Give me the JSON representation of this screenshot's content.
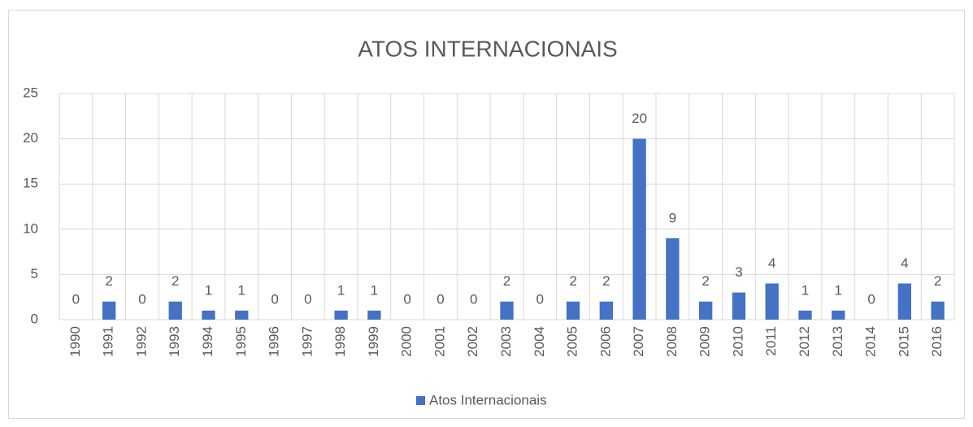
{
  "chart_data": {
    "type": "bar",
    "title": "ATOS INTERNACIONAIS",
    "categories": [
      "1990",
      "1991",
      "1992",
      "1993",
      "1994",
      "1995",
      "1996",
      "1997",
      "1998",
      "1999",
      "2000",
      "2001",
      "2002",
      "2003",
      "2004",
      "2005",
      "2006",
      "2007",
      "2008",
      "2009",
      "2010",
      "2011",
      "2012",
      "2013",
      "2014",
      "2015",
      "2016"
    ],
    "series": [
      {
        "name": "Atos Internacionais",
        "color": "#4472c4",
        "values": [
          0,
          2,
          0,
          2,
          1,
          1,
          0,
          0,
          1,
          1,
          0,
          0,
          0,
          2,
          0,
          2,
          2,
          20,
          9,
          2,
          3,
          4,
          1,
          1,
          0,
          4,
          2
        ]
      }
    ],
    "ylim": [
      0,
      25
    ],
    "yticks": [
      0,
      5,
      10,
      15,
      20,
      25
    ],
    "grid": true,
    "legend": "bottom"
  }
}
